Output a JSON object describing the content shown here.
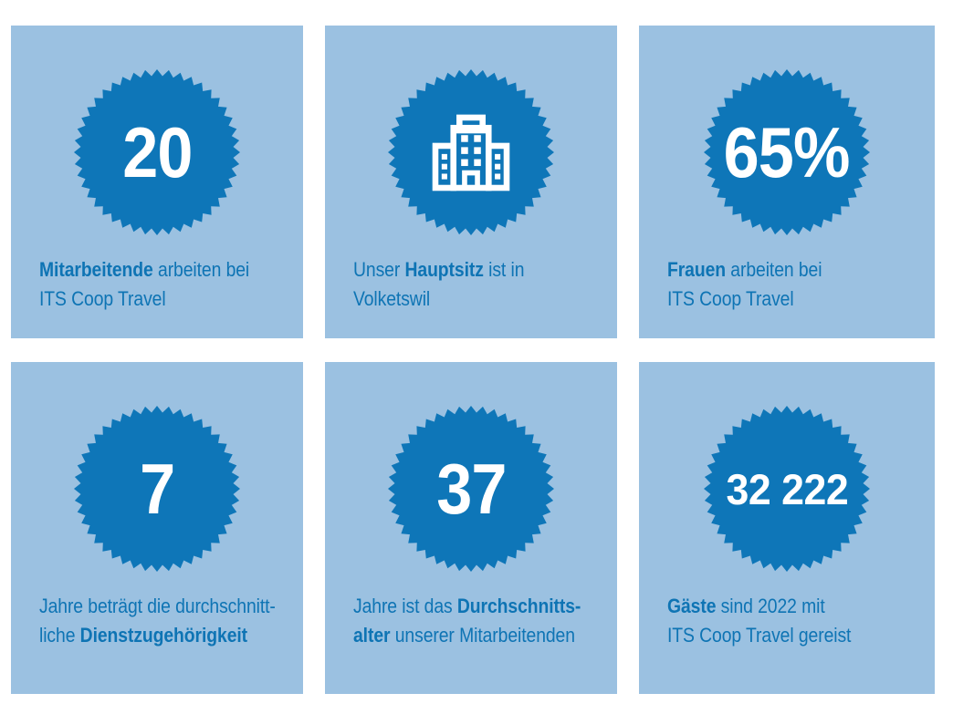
{
  "colors": {
    "badge": "#0E76B8",
    "card": "#9BC1E1",
    "text": "#0E74B4",
    "value": "#FFFFFF",
    "page_bg": "#FFFFFF"
  },
  "cards": [
    {
      "id": "mitarbeitende",
      "value": "20",
      "icon": null,
      "caption": [
        [
          {
            "text": "Mitarbeitende",
            "bold": true
          },
          {
            "text": " arbeiten bei",
            "bold": false
          }
        ],
        [
          {
            "text": "ITS Coop Travel",
            "bold": false
          }
        ]
      ]
    },
    {
      "id": "hauptsitz",
      "value": null,
      "icon": "building-icon",
      "caption": [
        [
          {
            "text": "Unser ",
            "bold": false
          },
          {
            "text": "Hauptsitz",
            "bold": true
          },
          {
            "text": " ist in",
            "bold": false
          }
        ],
        [
          {
            "text": "Volketswil",
            "bold": false
          }
        ]
      ]
    },
    {
      "id": "frauen",
      "value": "65%",
      "icon": null,
      "caption": [
        [
          {
            "text": "Frauen",
            "bold": true
          },
          {
            "text": " arbeiten bei",
            "bold": false
          }
        ],
        [
          {
            "text": "ITS Coop Travel",
            "bold": false
          }
        ]
      ]
    },
    {
      "id": "dienstzugehoerigkeit",
      "value": "7",
      "icon": null,
      "caption": [
        [
          {
            "text": "Jahre beträgt die durchschnitt-",
            "bold": false
          }
        ],
        [
          {
            "text": "liche ",
            "bold": false
          },
          {
            "text": "Dienstzugehörigkeit",
            "bold": true
          }
        ]
      ]
    },
    {
      "id": "durchschnittsalter",
      "value": "37",
      "icon": null,
      "caption": [
        [
          {
            "text": "Jahre ist das ",
            "bold": false
          },
          {
            "text": "Durchschnitts-",
            "bold": true
          }
        ],
        [
          {
            "text": "alter",
            "bold": true
          },
          {
            "text": " unserer Mitarbeitenden",
            "bold": false
          }
        ]
      ]
    },
    {
      "id": "gaeste",
      "value": "32 222",
      "icon": null,
      "caption": [
        [
          {
            "text": "Gäste",
            "bold": true
          },
          {
            "text": " sind 2022 mit",
            "bold": false
          }
        ],
        [
          {
            "text": "ITS Coop Travel gereist",
            "bold": false
          }
        ]
      ]
    }
  ],
  "chart_data": {
    "type": "table",
    "items": [
      {
        "value": "20",
        "label": "Mitarbeitende arbeiten bei ITS Coop Travel"
      },
      {
        "value": null,
        "icon": "building",
        "label": "Unser Hauptsitz ist in Volketswil"
      },
      {
        "value": "65%",
        "label": "Frauen arbeiten bei ITS Coop Travel"
      },
      {
        "value": "7",
        "label": "Jahre beträgt die durchschnittliche Dienstzugehörigkeit"
      },
      {
        "value": "37",
        "label": "Jahre ist das Durchschnittsalter unserer Mitarbeitenden"
      },
      {
        "value": "32 222",
        "label": "Gäste sind 2022 mit ITS Coop Travel gereist"
      }
    ]
  }
}
